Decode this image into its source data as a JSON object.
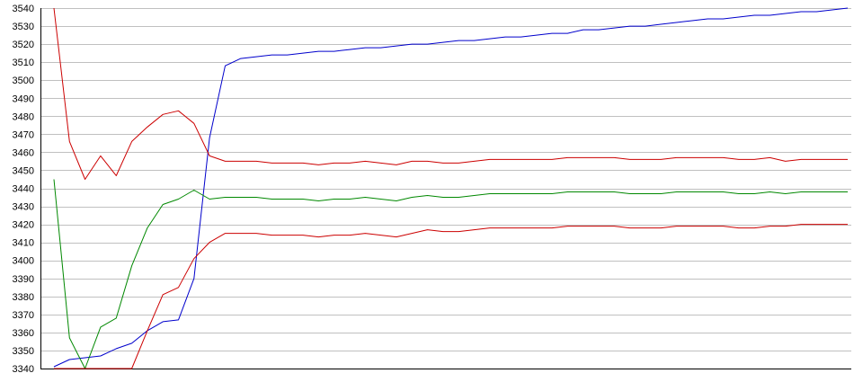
{
  "chart_data": {
    "type": "line",
    "title": "",
    "xlabel": "",
    "ylabel": "",
    "ylim": [
      3340,
      3540
    ],
    "yticks": [
      3340,
      3350,
      3360,
      3370,
      3380,
      3390,
      3400,
      3410,
      3420,
      3430,
      3440,
      3450,
      3460,
      3470,
      3480,
      3490,
      3500,
      3510,
      3520,
      3530,
      3540
    ],
    "x": [
      0,
      1,
      2,
      3,
      4,
      5,
      6,
      7,
      8,
      9,
      10,
      11,
      12,
      13,
      14,
      15,
      16,
      17,
      18,
      19,
      20,
      21,
      22,
      23,
      24,
      25,
      26,
      27,
      28,
      29,
      30,
      31,
      32,
      33,
      34,
      35,
      36,
      37,
      38,
      39,
      40,
      41,
      42,
      43,
      44,
      45,
      46,
      47,
      48,
      49,
      50,
      51
    ],
    "xlim": [
      0,
      51
    ],
    "grid": true,
    "legend": "none",
    "colors": {
      "grid": "#c0c0c0",
      "axis": "#000000"
    },
    "series": [
      {
        "color": "#0000cc",
        "values": [
          3341,
          3345,
          3346,
          3347,
          3351,
          3354,
          3361,
          3366,
          3367,
          3390,
          3468,
          3508,
          3512,
          3513,
          3514,
          3514,
          3515,
          3516,
          3516,
          3517,
          3518,
          3518,
          3519,
          3520,
          3520,
          3521,
          3522,
          3522,
          3523,
          3524,
          3524,
          3525,
          3526,
          3526,
          3528,
          3528,
          3529,
          3530,
          3530,
          3531,
          3532,
          3533,
          3534,
          3534,
          3535,
          3536,
          3536,
          3537,
          3538,
          3538,
          3539,
          3540
        ]
      },
      {
        "color": "#cc0000",
        "values": [
          3540,
          3466,
          3445,
          3458,
          3447,
          3466,
          3474,
          3481,
          3483,
          3476,
          3458,
          3455,
          3455,
          3455,
          3454,
          3454,
          3454,
          3453,
          3454,
          3454,
          3455,
          3454,
          3453,
          3455,
          3455,
          3454,
          3454,
          3455,
          3456,
          3456,
          3456,
          3456,
          3456,
          3457,
          3457,
          3457,
          3457,
          3456,
          3456,
          3456,
          3457,
          3457,
          3457,
          3457,
          3456,
          3456,
          3457,
          3455,
          3456,
          3456,
          3456,
          3456
        ]
      },
      {
        "color": "#008800",
        "values": [
          3445,
          3357,
          3340,
          3363,
          3368,
          3397,
          3418,
          3431,
          3434,
          3439,
          3434,
          3435,
          3435,
          3435,
          3434,
          3434,
          3434,
          3433,
          3434,
          3434,
          3435,
          3434,
          3433,
          3435,
          3436,
          3435,
          3435,
          3436,
          3437,
          3437,
          3437,
          3437,
          3437,
          3438,
          3438,
          3438,
          3438,
          3437,
          3437,
          3437,
          3438,
          3438,
          3438,
          3438,
          3437,
          3437,
          3438,
          3437,
          3438,
          3438,
          3438,
          3438
        ]
      },
      {
        "color": "#cc0000",
        "values": [
          3340,
          3340,
          3340,
          3340,
          3340,
          3340,
          3361,
          3381,
          3385,
          3401,
          3410,
          3415,
          3415,
          3415,
          3414,
          3414,
          3414,
          3413,
          3414,
          3414,
          3415,
          3414,
          3413,
          3415,
          3417,
          3416,
          3416,
          3417,
          3418,
          3418,
          3418,
          3418,
          3418,
          3419,
          3419,
          3419,
          3419,
          3418,
          3418,
          3418,
          3419,
          3419,
          3419,
          3419,
          3418,
          3418,
          3419,
          3419,
          3420,
          3420,
          3420,
          3420
        ]
      }
    ]
  }
}
